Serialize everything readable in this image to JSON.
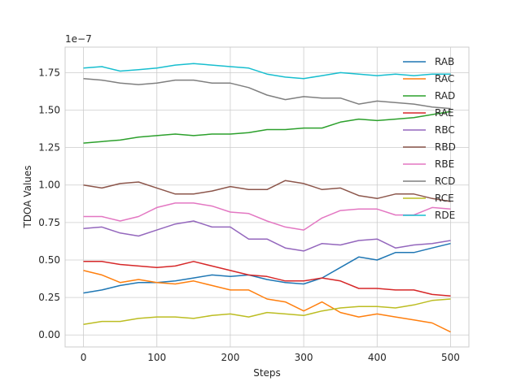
{
  "chart_data": {
    "type": "line",
    "title": "",
    "xlabel": "Steps",
    "ylabel": "TDOA Values",
    "y_multiplier_label": "1e−7",
    "xlim": [
      -25,
      525
    ],
    "ylim": [
      -0.08,
      1.92
    ],
    "x_ticks": [
      0,
      100,
      200,
      300,
      400,
      500
    ],
    "x_tick_labels": [
      "0",
      "100",
      "200",
      "300",
      "400",
      "500"
    ],
    "y_ticks": [
      0.0,
      0.25,
      0.5,
      0.75,
      1.0,
      1.25,
      1.5,
      1.75
    ],
    "y_tick_labels": [
      "0.00",
      "0.25",
      "0.50",
      "0.75",
      "1.00",
      "1.25",
      "1.50",
      "1.75"
    ],
    "grid": true,
    "legend_position": "top-right",
    "x": [
      0,
      25,
      50,
      75,
      100,
      125,
      150,
      175,
      200,
      225,
      250,
      275,
      300,
      325,
      350,
      375,
      400,
      425,
      450,
      475,
      500
    ],
    "series": [
      {
        "name": "RAB",
        "color": "#1f77b4",
        "values": [
          0.28,
          0.3,
          0.33,
          0.35,
          0.35,
          0.36,
          0.38,
          0.4,
          0.39,
          0.4,
          0.37,
          0.35,
          0.34,
          0.38,
          0.45,
          0.52,
          0.5,
          0.55,
          0.55,
          0.58,
          0.61
        ]
      },
      {
        "name": "RAC",
        "color": "#ff7f0e",
        "values": [
          0.43,
          0.4,
          0.35,
          0.37,
          0.35,
          0.34,
          0.36,
          0.33,
          0.3,
          0.3,
          0.24,
          0.22,
          0.16,
          0.22,
          0.15,
          0.12,
          0.14,
          0.12,
          0.1,
          0.08,
          0.02
        ]
      },
      {
        "name": "RAD",
        "color": "#2ca02c",
        "values": [
          1.28,
          1.29,
          1.3,
          1.32,
          1.33,
          1.34,
          1.33,
          1.34,
          1.34,
          1.35,
          1.37,
          1.37,
          1.38,
          1.38,
          1.42,
          1.44,
          1.43,
          1.44,
          1.45,
          1.47,
          1.49
        ]
      },
      {
        "name": "RAE",
        "color": "#d62728",
        "values": [
          0.49,
          0.49,
          0.47,
          0.46,
          0.45,
          0.46,
          0.49,
          0.46,
          0.43,
          0.4,
          0.39,
          0.36,
          0.36,
          0.38,
          0.36,
          0.31,
          0.31,
          0.3,
          0.3,
          0.27,
          0.26
        ]
      },
      {
        "name": "RBC",
        "color": "#9467bd",
        "values": [
          0.71,
          0.72,
          0.68,
          0.66,
          0.7,
          0.74,
          0.76,
          0.72,
          0.72,
          0.64,
          0.64,
          0.58,
          0.56,
          0.61,
          0.6,
          0.63,
          0.64,
          0.58,
          0.6,
          0.61,
          0.63
        ]
      },
      {
        "name": "RBD",
        "color": "#8c564b",
        "values": [
          1.0,
          0.98,
          1.01,
          1.02,
          0.98,
          0.94,
          0.94,
          0.96,
          0.99,
          0.97,
          0.97,
          1.03,
          1.01,
          0.97,
          0.98,
          0.93,
          0.91,
          0.94,
          0.94,
          0.91,
          0.89
        ]
      },
      {
        "name": "RBE",
        "color": "#e377c2",
        "values": [
          0.79,
          0.79,
          0.76,
          0.79,
          0.85,
          0.88,
          0.88,
          0.86,
          0.82,
          0.81,
          0.76,
          0.72,
          0.7,
          0.78,
          0.83,
          0.84,
          0.84,
          0.8,
          0.8,
          0.85,
          0.84
        ]
      },
      {
        "name": "RCD",
        "color": "#7f7f7f",
        "values": [
          1.71,
          1.7,
          1.68,
          1.67,
          1.68,
          1.7,
          1.7,
          1.68,
          1.68,
          1.65,
          1.6,
          1.57,
          1.59,
          1.58,
          1.58,
          1.54,
          1.56,
          1.55,
          1.54,
          1.52,
          1.51
        ]
      },
      {
        "name": "RCE",
        "color": "#bcbd22",
        "values": [
          0.07,
          0.09,
          0.09,
          0.11,
          0.12,
          0.12,
          0.11,
          0.13,
          0.14,
          0.12,
          0.15,
          0.14,
          0.13,
          0.16,
          0.18,
          0.19,
          0.19,
          0.18,
          0.2,
          0.23,
          0.24
        ]
      },
      {
        "name": "RDE",
        "color": "#17becf",
        "values": [
          1.78,
          1.79,
          1.76,
          1.77,
          1.78,
          1.8,
          1.81,
          1.8,
          1.79,
          1.78,
          1.74,
          1.72,
          1.71,
          1.73,
          1.75,
          1.74,
          1.73,
          1.74,
          1.73,
          1.74,
          1.74
        ]
      }
    ]
  }
}
